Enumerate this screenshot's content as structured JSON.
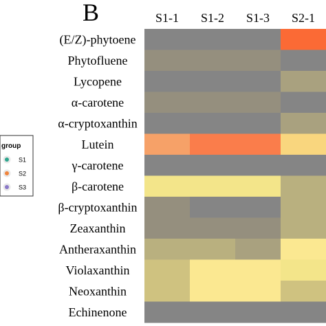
{
  "panel_letter": "B",
  "legend": {
    "title": "group",
    "items": [
      {
        "label": "S1",
        "color": "#2ca58d"
      },
      {
        "label": "S2",
        "color": "#f0843c"
      },
      {
        "label": "S3",
        "color": "#8a78c8"
      }
    ]
  },
  "colors": {
    "gray": "#858585",
    "taupe": "#958f7e",
    "khaki": "#a9a17f",
    "tan": "#b9b07f",
    "pale_khaki": "#cfc280",
    "light_yellow": "#f3e58a",
    "yellow": "#fbe891",
    "light_orange": "#f6a168",
    "orange": "#fa7d4b",
    "red_orange": "#fb6a35",
    "gold": "#f9d67e"
  },
  "chart_data": {
    "type": "heatmap",
    "title": "",
    "columns": [
      "S1-1",
      "S1-2",
      "S1-3",
      "S2-1"
    ],
    "rows": [
      "(E/Z)-phytoene",
      "Phytofluene",
      "Lycopene",
      "α-carotene",
      "α-cryptoxanthin",
      "Lutein",
      "γ-carotene",
      "β-carotene",
      "β-cryptoxanthin",
      "Zeaxanthin",
      "Antheraxanthin",
      "Violaxanthin",
      "Neoxanthin",
      "Echinenone"
    ],
    "cells": [
      [
        "gray",
        "gray",
        "gray",
        "red_orange"
      ],
      [
        "taupe",
        "taupe",
        "taupe",
        "gray"
      ],
      [
        "gray",
        "gray",
        "gray",
        "khaki"
      ],
      [
        "taupe",
        "taupe",
        "taupe",
        "gray"
      ],
      [
        "gray",
        "gray",
        "gray",
        "khaki"
      ],
      [
        "light_orange",
        "orange",
        "orange",
        "gold"
      ],
      [
        "gray",
        "gray",
        "gray",
        "gray"
      ],
      [
        "light_yellow",
        "light_yellow",
        "light_yellow",
        "tan"
      ],
      [
        "taupe",
        "gray",
        "gray",
        "tan"
      ],
      [
        "taupe",
        "taupe",
        "taupe",
        "tan"
      ],
      [
        "tan",
        "tan",
        "khaki",
        "yellow"
      ],
      [
        "pale_khaki",
        "yellow",
        "yellow",
        "light_yellow"
      ],
      [
        "pale_khaki",
        "yellow",
        "yellow",
        "pale_khaki"
      ],
      [
        "gray",
        "gray",
        "gray",
        "gray"
      ]
    ]
  }
}
